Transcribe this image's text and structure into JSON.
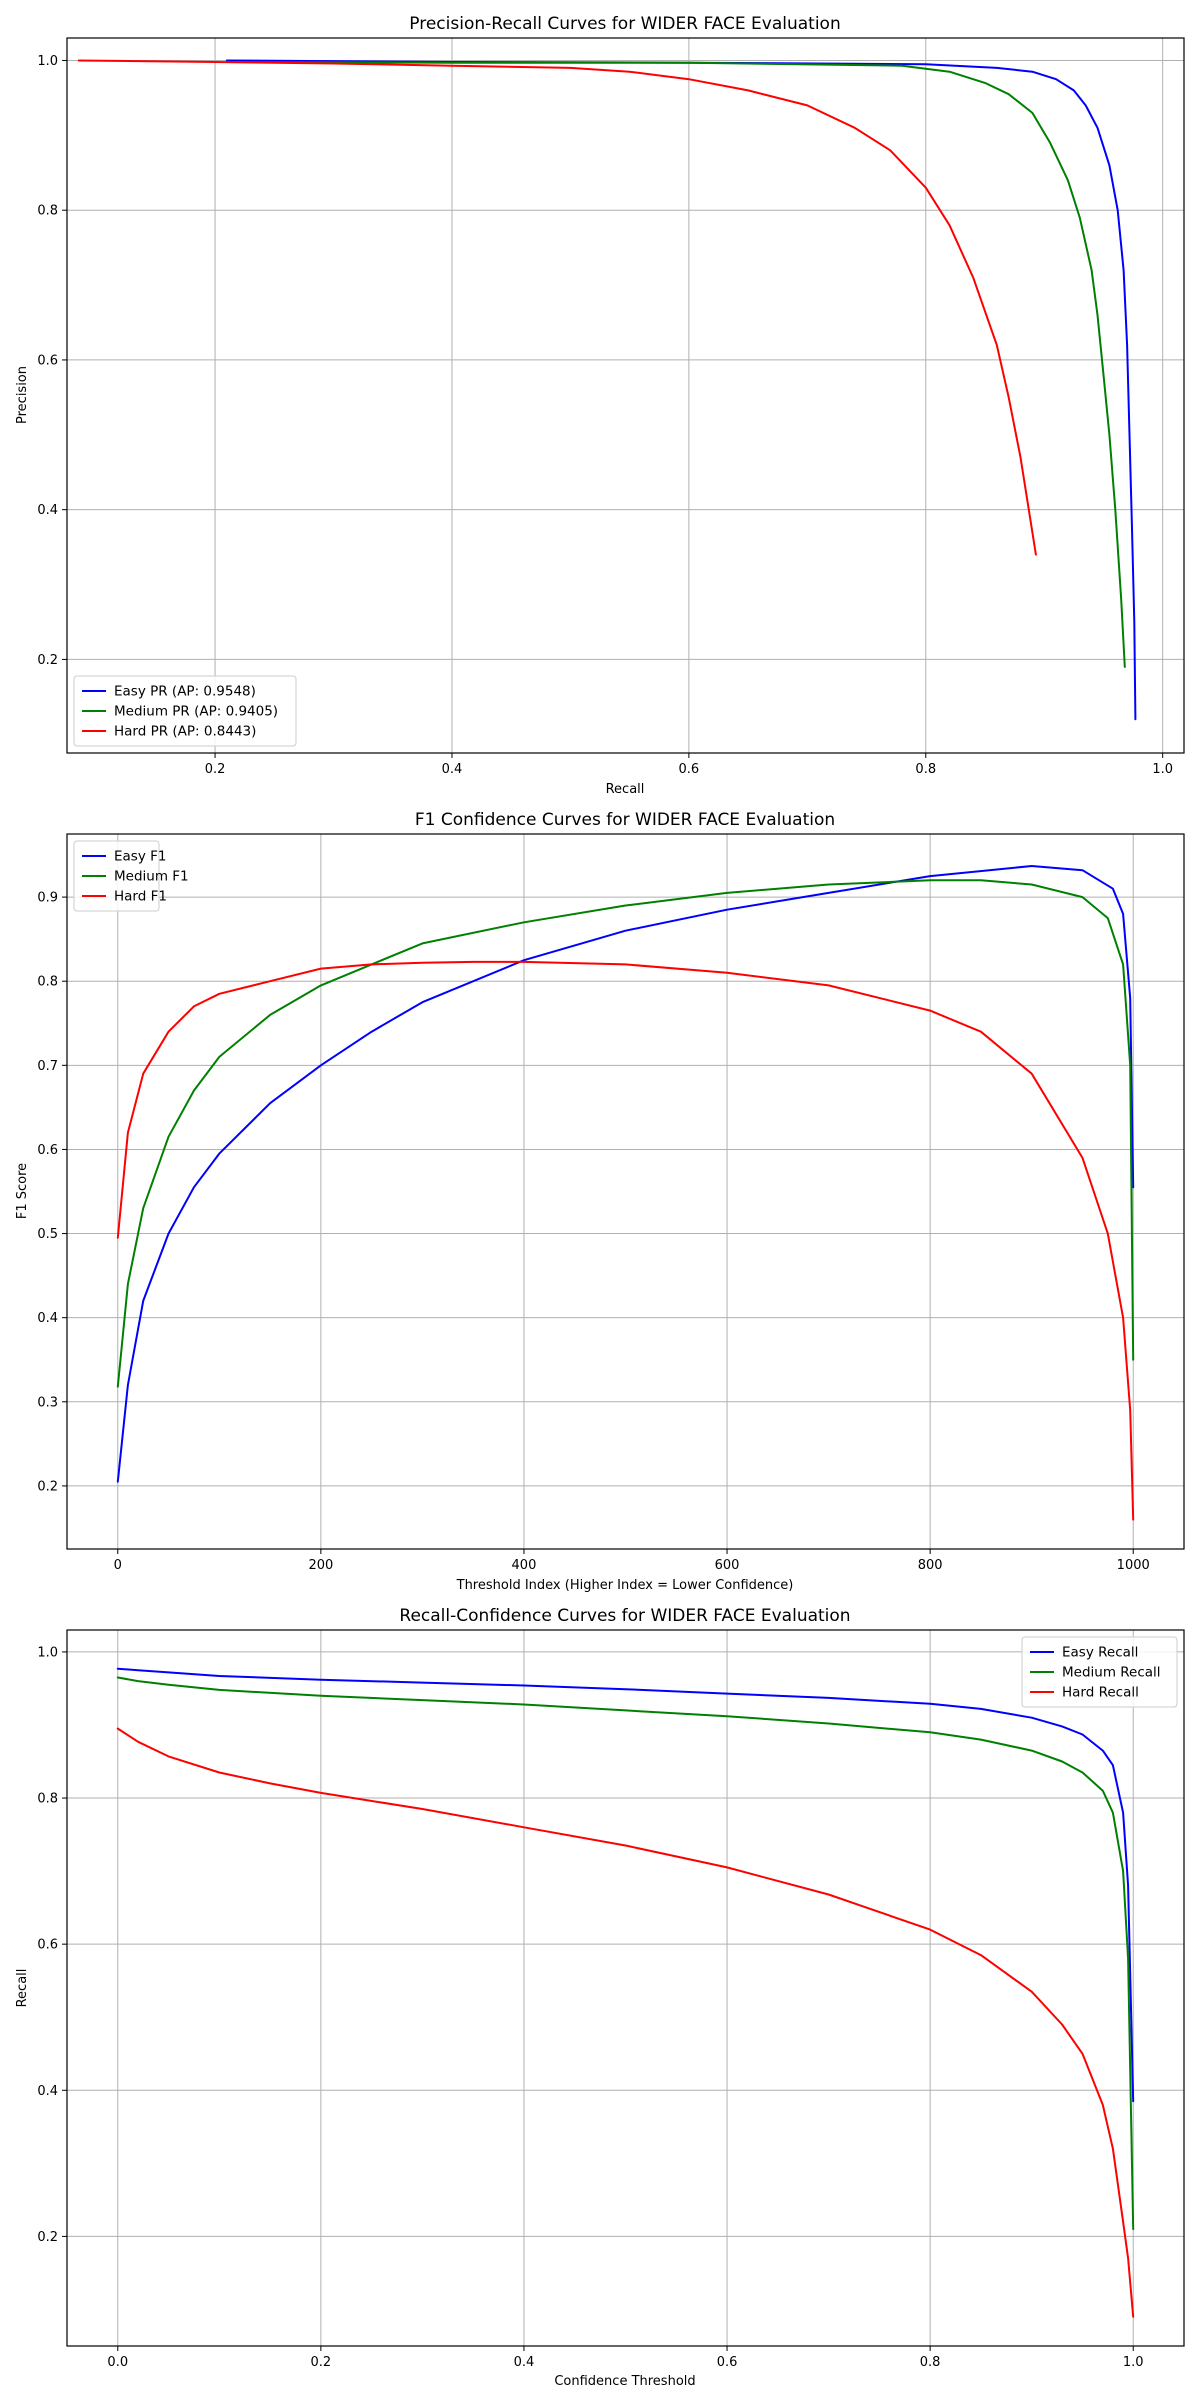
{
  "chart_data": [
    {
      "type": "line",
      "title": "Precision-Recall Curves for WIDER FACE Evaluation",
      "xlabel": "Recall",
      "ylabel": "Precision",
      "xlim": [
        0.075,
        1.018
      ],
      "ylim": [
        0.075,
        1.03
      ],
      "xticks": [
        0.2,
        0.4,
        0.6,
        0.8,
        1.0
      ],
      "xtick_labels": [
        "0.2",
        "0.4",
        "0.6",
        "0.8",
        "1.0"
      ],
      "yticks": [
        0.2,
        0.4,
        0.6,
        0.8,
        1.0
      ],
      "ytick_labels": [
        "0.2",
        "0.4",
        "0.6",
        "0.8",
        "1.0"
      ],
      "grid": true,
      "legend": "lower-left",
      "series": [
        {
          "name": "Easy PR (AP: 0.9548)",
          "color": "#0000ff",
          "x": [
            0.21,
            0.4,
            0.6,
            0.8,
            0.86,
            0.89,
            0.91,
            0.925,
            0.935,
            0.945,
            0.955,
            0.962,
            0.967,
            0.97,
            0.972,
            0.974,
            0.976,
            0.977
          ],
          "y": [
            1.0,
            0.998,
            0.997,
            0.995,
            0.99,
            0.985,
            0.975,
            0.96,
            0.94,
            0.91,
            0.86,
            0.8,
            0.72,
            0.62,
            0.5,
            0.38,
            0.25,
            0.12
          ]
        },
        {
          "name": "Medium PR (AP: 0.9405)",
          "color": "#008000",
          "x": [
            0.21,
            0.4,
            0.6,
            0.78,
            0.82,
            0.85,
            0.87,
            0.89,
            0.905,
            0.92,
            0.93,
            0.94,
            0.945,
            0.95,
            0.955,
            0.96,
            0.965,
            0.968
          ],
          "y": [
            0.998,
            0.997,
            0.997,
            0.993,
            0.985,
            0.97,
            0.955,
            0.93,
            0.89,
            0.84,
            0.79,
            0.72,
            0.66,
            0.58,
            0.5,
            0.4,
            0.28,
            0.19
          ]
        },
        {
          "name": "Hard PR (AP: 0.8443)",
          "color": "#ff0000",
          "x": [
            0.085,
            0.2,
            0.3,
            0.4,
            0.5,
            0.55,
            0.6,
            0.65,
            0.7,
            0.74,
            0.77,
            0.8,
            0.82,
            0.84,
            0.86,
            0.87,
            0.88,
            0.893
          ],
          "y": [
            1.0,
            0.998,
            0.996,
            0.993,
            0.99,
            0.985,
            0.975,
            0.96,
            0.94,
            0.91,
            0.88,
            0.83,
            0.78,
            0.71,
            0.62,
            0.55,
            0.47,
            0.34
          ]
        }
      ]
    },
    {
      "type": "line",
      "title": "F1 Confidence Curves for WIDER FACE Evaluation",
      "xlabel": "Threshold Index (Higher Index = Lower Confidence)",
      "ylabel": "F1 Score",
      "xlim": [
        -50,
        1050
      ],
      "ylim": [
        0.125,
        0.975
      ],
      "xticks": [
        0,
        200,
        400,
        600,
        800,
        1000
      ],
      "xtick_labels": [
        "0",
        "200",
        "400",
        "600",
        "800",
        "1000"
      ],
      "yticks": [
        0.2,
        0.3,
        0.4,
        0.5,
        0.6,
        0.7,
        0.8,
        0.9
      ],
      "ytick_labels": [
        "0.2",
        "0.3",
        "0.4",
        "0.5",
        "0.6",
        "0.7",
        "0.8",
        "0.9"
      ],
      "grid": true,
      "legend": "upper-left",
      "series": [
        {
          "name": "Easy F1",
          "color": "#0000ff",
          "x": [
            0,
            10,
            25,
            50,
            75,
            100,
            150,
            200,
            250,
            300,
            400,
            500,
            600,
            700,
            800,
            900,
            950,
            980,
            990,
            997,
            1000
          ],
          "y": [
            0.205,
            0.32,
            0.42,
            0.5,
            0.555,
            0.595,
            0.655,
            0.7,
            0.74,
            0.775,
            0.825,
            0.86,
            0.885,
            0.905,
            0.925,
            0.937,
            0.932,
            0.91,
            0.88,
            0.78,
            0.555
          ]
        },
        {
          "name": "Medium F1",
          "color": "#008000",
          "x": [
            0,
            10,
            25,
            50,
            75,
            100,
            150,
            200,
            250,
            300,
            400,
            500,
            600,
            700,
            800,
            850,
            900,
            950,
            975,
            990,
            997,
            1000
          ],
          "y": [
            0.318,
            0.44,
            0.53,
            0.615,
            0.67,
            0.71,
            0.76,
            0.795,
            0.82,
            0.845,
            0.87,
            0.89,
            0.905,
            0.915,
            0.92,
            0.92,
            0.915,
            0.9,
            0.875,
            0.82,
            0.7,
            0.35
          ]
        },
        {
          "name": "Hard F1",
          "color": "#ff0000",
          "x": [
            0,
            10,
            25,
            50,
            75,
            100,
            150,
            200,
            250,
            300,
            350,
            400,
            500,
            600,
            700,
            800,
            850,
            900,
            950,
            975,
            990,
            997,
            1000
          ],
          "y": [
            0.495,
            0.62,
            0.69,
            0.74,
            0.77,
            0.785,
            0.8,
            0.815,
            0.82,
            0.822,
            0.823,
            0.823,
            0.82,
            0.81,
            0.795,
            0.765,
            0.74,
            0.69,
            0.59,
            0.5,
            0.4,
            0.29,
            0.16
          ]
        }
      ]
    },
    {
      "type": "line",
      "title": "Recall-Confidence Curves for WIDER FACE Evaluation",
      "xlabel": "Confidence Threshold",
      "ylabel": "Recall",
      "xlim": [
        -0.05,
        1.05
      ],
      "ylim": [
        0.05,
        1.03
      ],
      "xticks": [
        0.0,
        0.2,
        0.4,
        0.6,
        0.8,
        1.0
      ],
      "xtick_labels": [
        "0.0",
        "0.2",
        "0.4",
        "0.6",
        "0.8",
        "1.0"
      ],
      "yticks": [
        0.2,
        0.4,
        0.6,
        0.8,
        1.0
      ],
      "ytick_labels": [
        "0.2",
        "0.4",
        "0.6",
        "0.8",
        "1.0"
      ],
      "grid": true,
      "legend": "upper-right",
      "series": [
        {
          "name": "Easy Recall",
          "color": "#0000ff",
          "x": [
            0.0,
            0.02,
            0.05,
            0.1,
            0.2,
            0.3,
            0.4,
            0.5,
            0.6,
            0.7,
            0.8,
            0.85,
            0.9,
            0.93,
            0.95,
            0.97,
            0.98,
            0.99,
            0.995,
            1.0
          ],
          "y": [
            0.977,
            0.975,
            0.972,
            0.967,
            0.962,
            0.958,
            0.954,
            0.949,
            0.943,
            0.937,
            0.929,
            0.922,
            0.91,
            0.898,
            0.887,
            0.865,
            0.845,
            0.78,
            0.68,
            0.385
          ]
        },
        {
          "name": "Medium Recall",
          "color": "#008000",
          "x": [
            0.0,
            0.02,
            0.05,
            0.1,
            0.2,
            0.3,
            0.4,
            0.5,
            0.6,
            0.7,
            0.8,
            0.85,
            0.9,
            0.93,
            0.95,
            0.97,
            0.98,
            0.99,
            0.995,
            1.0
          ],
          "y": [
            0.965,
            0.96,
            0.955,
            0.948,
            0.94,
            0.934,
            0.928,
            0.92,
            0.912,
            0.902,
            0.89,
            0.88,
            0.865,
            0.85,
            0.835,
            0.81,
            0.78,
            0.7,
            0.58,
            0.21
          ]
        },
        {
          "name": "Hard Recall",
          "color": "#ff0000",
          "x": [
            0.0,
            0.02,
            0.05,
            0.1,
            0.15,
            0.2,
            0.3,
            0.4,
            0.5,
            0.6,
            0.7,
            0.8,
            0.85,
            0.9,
            0.93,
            0.95,
            0.97,
            0.98,
            0.99,
            0.995,
            1.0
          ],
          "y": [
            0.895,
            0.877,
            0.857,
            0.835,
            0.82,
            0.807,
            0.785,
            0.76,
            0.735,
            0.705,
            0.668,
            0.62,
            0.585,
            0.535,
            0.49,
            0.45,
            0.38,
            0.32,
            0.22,
            0.17,
            0.09
          ]
        }
      ]
    }
  ]
}
